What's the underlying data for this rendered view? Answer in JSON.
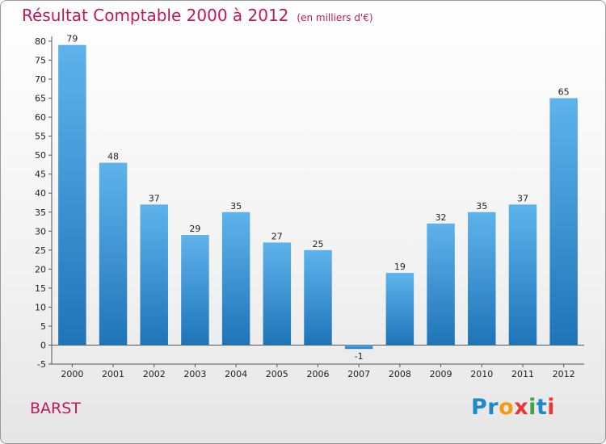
{
  "header": {
    "title": "Résultat Comptable 2000 à 2012",
    "subtitle": "(en milliers d'€)"
  },
  "footer": {
    "commune": "BARST",
    "logo_letters": [
      {
        "ch": "P",
        "color": "#1e88c8"
      },
      {
        "ch": "r",
        "color": "#1e88c8"
      },
      {
        "ch": "o",
        "color": "#f39c12"
      },
      {
        "ch": "x",
        "color": "#e53935"
      },
      {
        "ch": "i",
        "color": "#43a047"
      },
      {
        "ch": "t",
        "color": "#1e88c8"
      },
      {
        "ch": "i",
        "color": "#e53935"
      }
    ]
  },
  "chart_data": {
    "type": "bar",
    "title": "Résultat Comptable 2000 à 2012",
    "subtitle": "(en milliers d'€)",
    "xlabel": "",
    "ylabel": "",
    "categories": [
      "2000",
      "2001",
      "2002",
      "2003",
      "2004",
      "2005",
      "2006",
      "2007",
      "2008",
      "2009",
      "2010",
      "2011",
      "2012"
    ],
    "values": [
      79,
      48,
      37,
      29,
      35,
      27,
      25,
      -1,
      19,
      32,
      35,
      37,
      65
    ],
    "value_labels": [
      "79",
      "48",
      "37",
      "29",
      "35",
      "27",
      "25",
      "-1",
      "19",
      "32",
      "35",
      "37",
      "65"
    ],
    "ylim": [
      -5,
      80
    ],
    "yticks": [
      -5,
      0,
      5,
      10,
      15,
      20,
      25,
      30,
      35,
      40,
      45,
      50,
      55,
      60,
      65,
      70,
      75,
      80
    ],
    "grid": false,
    "legend": "none",
    "colors": {
      "bar_light": "#5fb3ec",
      "bar_dark": "#1f74b8",
      "axis": "#555555"
    }
  }
}
